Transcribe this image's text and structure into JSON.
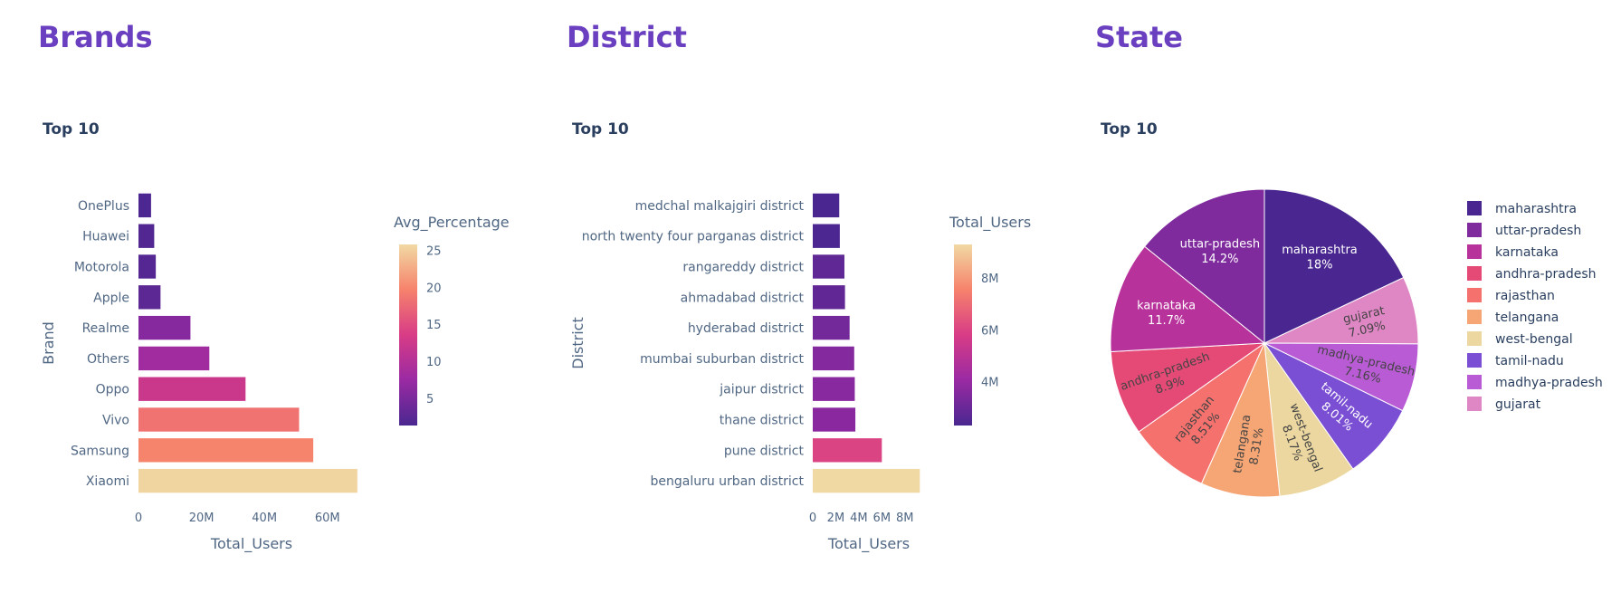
{
  "sections": [
    {
      "title": "Brands"
    },
    {
      "title": "District"
    },
    {
      "title": "State"
    }
  ],
  "chart_data": [
    {
      "type": "bar",
      "orientation": "horizontal",
      "title": "Top 10",
      "xlabel": "Total_Users",
      "ylabel": "Brand",
      "categories": [
        "Xiaomi",
        "Samsung",
        "Vivo",
        "Oppo",
        "Others",
        "Realme",
        "Apple",
        "Motorola",
        "Huawei",
        "OnePlus"
      ],
      "values": [
        69.5,
        55.5,
        51,
        34,
        22.5,
        16.5,
        7,
        5.5,
        5,
        4
      ],
      "color_values": [
        25.5,
        19.8,
        18.4,
        12.2,
        8.1,
        5.9,
        2.6,
        2.1,
        1.9,
        1.5
      ],
      "x_ticks": [
        "0",
        "20M",
        "40M",
        "60M"
      ],
      "x_tick_values": [
        0,
        20,
        40,
        60
      ],
      "xlim": [
        0,
        73
      ],
      "colorbar": {
        "title": "Avg_Percentage",
        "ticks": [
          "5",
          "10",
          "15",
          "20",
          "25"
        ],
        "tick_values": [
          5,
          10,
          15,
          20,
          25
        ],
        "range": [
          1.3,
          25.8
        ]
      },
      "grid": false
    },
    {
      "type": "bar",
      "orientation": "horizontal",
      "title": "Top 10",
      "xlabel": "Total_Users",
      "ylabel": "District",
      "categories": [
        "bengaluru urban district",
        "pune district",
        "thane district",
        "jaipur district",
        "mumbai suburban district",
        "hyderabad district",
        "ahmadabad district",
        "rangareddy district",
        "north twenty four parganas district",
        "medchal malkajgiri district"
      ],
      "values": [
        9.3,
        6.0,
        3.7,
        3.65,
        3.6,
        3.2,
        2.8,
        2.75,
        2.35,
        2.3
      ],
      "color_values": [
        9.3,
        6.0,
        3.7,
        3.65,
        3.6,
        3.2,
        2.8,
        2.75,
        2.35,
        2.3
      ],
      "x_ticks": [
        "0",
        "2M",
        "4M",
        "6M",
        "8M"
      ],
      "x_tick_values": [
        0,
        2,
        4,
        6,
        8
      ],
      "xlim": [
        0,
        10.3
      ],
      "colorbar": {
        "title": "Total_Users",
        "ticks": [
          "4M",
          "6M",
          "8M"
        ],
        "tick_values": [
          4,
          6,
          8
        ],
        "range": [
          2.3,
          9.3
        ]
      },
      "grid": false
    },
    {
      "type": "pie",
      "title": "Top 10",
      "labels": [
        "maharashtra",
        "uttar-pradesh",
        "karnataka",
        "andhra-pradesh",
        "rajasthan",
        "telangana",
        "west-bengal",
        "tamil-nadu",
        "madhya-pradesh",
        "gujarat"
      ],
      "values": [
        18,
        14.2,
        11.7,
        8.9,
        8.51,
        8.31,
        8.17,
        8.01,
        7.16,
        7.09
      ],
      "percent_labels": [
        "18%",
        "14.2%",
        "11.7%",
        "8.9%",
        "8.51%",
        "8.31%",
        "8.17%",
        "8.01%",
        "7.16%",
        "7.09%"
      ],
      "slice_order": [
        "maharashtra",
        "gujarat",
        "madhya-pradesh",
        "tamil-nadu",
        "west-bengal",
        "telangana",
        "rajasthan",
        "andhra-pradesh",
        "karnataka",
        "uttar-pradesh"
      ],
      "colors": {
        "maharashtra": "#4a2790",
        "uttar-pradesh": "#7f2a9d",
        "karnataka": "#b8329b",
        "andhra-pradesh": "#e54a77",
        "rajasthan": "#f4716d",
        "telangana": "#f6a674",
        "west-bengal": "#ecd7a0",
        "tamil-nadu": "#7b4fd3",
        "madhya-pradesh": "#ba5bd6",
        "gujarat": "#df86c5"
      },
      "legend_placement": "right",
      "direction": "clockwise"
    }
  ]
}
